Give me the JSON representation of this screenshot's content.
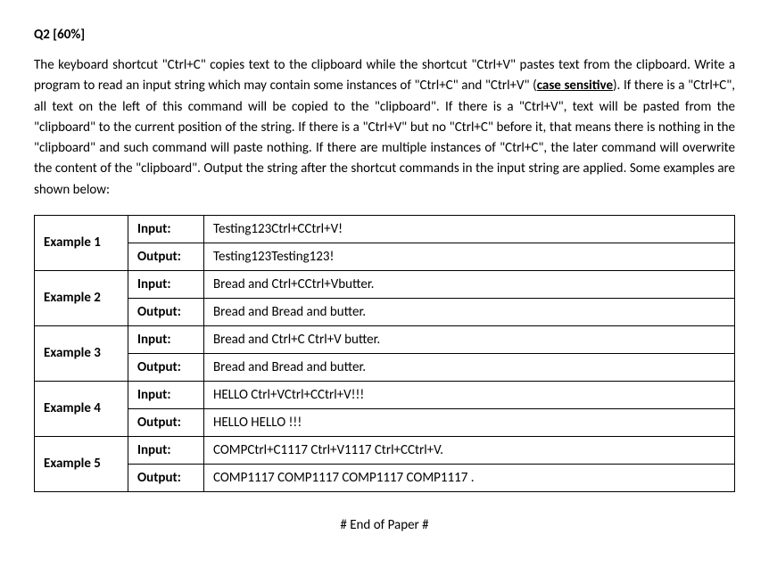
{
  "header": "Q2 [60%]",
  "paragraph_parts": {
    "p1": "The keyboard shortcut \"Ctrl+C\" copies text to the clipboard while the shortcut \"Ctrl+V\" pastes text from the clipboard. Write a program to read an input string which may contain some instances of \"Ctrl+C\" and \"Ctrl+V\" (",
    "p2": "case sensitive",
    "p3": "). If there is a \"Ctrl+C\", all text on the left of this command will be copied to the \"clipboard\". If there is a \"Ctrl+V\", text will be pasted from the \"clipboard\" to the current position of the string. If there is a \"Ctrl+V\" but no \"Ctrl+C\" before it, that means there is nothing in the \"clipboard\" and such command will paste nothing. If there are multiple instances of \"Ctrl+C\", the later command will overwrite the content of the \"clipboard\". Output the string after the shortcut commands in the input string are applied. Some examples are shown below:"
  },
  "labels": {
    "input": "Input:",
    "output": "Output:"
  },
  "examples": [
    {
      "name": "Example 1",
      "input": "Testing123Ctrl+CCtrl+V!",
      "output": "Testing123Testing123!"
    },
    {
      "name": "Example 2",
      "input": "Bread and Ctrl+CCtrl+Vbutter.",
      "output": "Bread and Bread and butter."
    },
    {
      "name": "Example 3",
      "input": "Bread and Ctrl+C Ctrl+V butter.",
      "output": "Bread and  Bread and  butter."
    },
    {
      "name": "Example 4",
      "input": "HELLO Ctrl+VCtrl+CCtrl+V!!!",
      "output": "HELLO HELLO !!!"
    },
    {
      "name": "Example 5",
      "input": "COMPCtrl+C1117 Ctrl+V1117 Ctrl+CCtrl+V.",
      "output": "COMP1117 COMP1117 COMP1117 COMP1117 ."
    }
  ],
  "end_marker": "# End of Paper #"
}
